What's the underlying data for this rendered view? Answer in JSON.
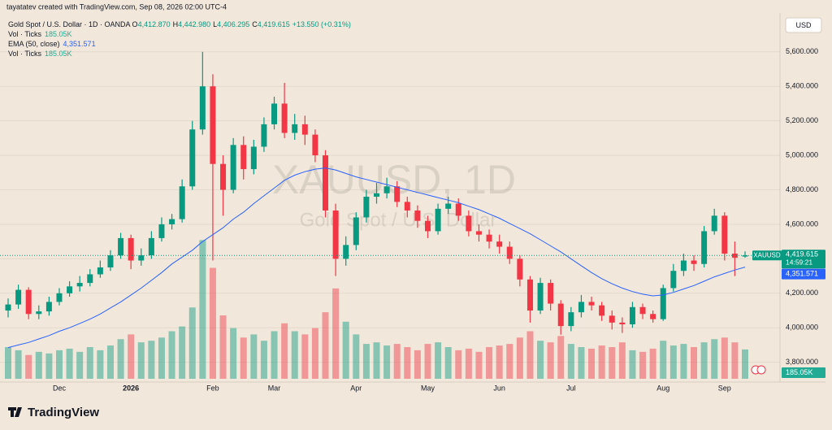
{
  "header": {
    "credit": "tayatatev created with TradingView.com, Sep 08, 2026 02:00 UTC-4"
  },
  "footer": {
    "brand": "TradingView"
  },
  "chart_data": {
    "type": "candlestick",
    "title": "Gold Spot / U.S. Dollar · 1D · OANDA",
    "watermark": "XAUUSD, 1D",
    "watermark_subtitle": "Gold Spot / U.S. Dollar",
    "symbol": "XAUUSD",
    "currency": "USD",
    "ohlc_legend": [
      {
        "key": "O",
        "label": "4,412.870"
      },
      {
        "key": "H",
        "label": "4,442.980"
      },
      {
        "key": "L",
        "label": "4,406.295"
      },
      {
        "key": "C",
        "label": "4,419.615"
      }
    ],
    "change_label": "+13.550 (+0.31%)",
    "categories": [
      null,
      null,
      null,
      null,
      null,
      "Dec",
      null,
      null,
      null,
      null,
      null,
      null,
      "2026",
      null,
      null,
      null,
      null,
      null,
      null,
      null,
      "Feb",
      null,
      null,
      null,
      null,
      null,
      "Mar",
      null,
      null,
      null,
      null,
      null,
      null,
      null,
      "Apr",
      null,
      null,
      null,
      null,
      null,
      null,
      "May",
      null,
      null,
      null,
      null,
      null,
      null,
      "Jun",
      null,
      null,
      null,
      null,
      null,
      null,
      "Jul",
      null,
      null,
      null,
      null,
      null,
      null,
      null,
      null,
      "Aug",
      null,
      null,
      null,
      null,
      null,
      "Sep",
      null,
      null
    ],
    "open": [
      4100,
      4135,
      4220,
      4080,
      4095,
      4150,
      4200,
      4240,
      4260,
      4310,
      4350,
      4420,
      4520,
      4390,
      4420,
      4520,
      4600,
      4630,
      4820,
      5150,
      5400,
      4950,
      4800,
      5060,
      4920,
      5050,
      5180,
      5300,
      5130,
      5180,
      5120,
      5000,
      4680,
      4400,
      4480,
      4640,
      4760,
      4780,
      4820,
      4730,
      4680,
      4620,
      4560,
      4690,
      4720,
      4650,
      4560,
      4540,
      4500,
      4470,
      4400,
      4280,
      4100,
      4260,
      4140,
      4010,
      4090,
      4150,
      4130,
      4070,
      4030,
      4020,
      4120,
      4080,
      4050,
      4230,
      4330,
      4390,
      4370,
      4560,
      4650,
      4430,
      4412.87
    ],
    "high": [
      4170,
      4250,
      4235,
      4130,
      4180,
      4230,
      4270,
      4300,
      4340,
      4390,
      4450,
      4550,
      4540,
      4460,
      4560,
      4640,
      4660,
      4860,
      5200,
      5600,
      5470,
      5000,
      5100,
      5110,
      5090,
      5220,
      5340,
      5420,
      5240,
      5230,
      5150,
      5030,
      4720,
      4530,
      4670,
      4800,
      4840,
      4870,
      4850,
      4760,
      4710,
      4650,
      4720,
      4760,
      4750,
      4680,
      4600,
      4570,
      4540,
      4500,
      4420,
      4300,
      4290,
      4280,
      4160,
      4120,
      4190,
      4180,
      4150,
      4100,
      4060,
      4150,
      4140,
      4100,
      4250,
      4370,
      4430,
      4420,
      4590,
      4690,
      4670,
      4500,
      4442.98
    ],
    "low": [
      4060,
      4110,
      4050,
      4050,
      4070,
      4130,
      4180,
      4210,
      4240,
      4290,
      4330,
      4400,
      4340,
      4360,
      4400,
      4500,
      4570,
      4610,
      4800,
      5120,
      4390,
      4650,
      4780,
      4860,
      4890,
      5020,
      5150,
      5100,
      5090,
      5060,
      4960,
      4640,
      4300,
      4360,
      4450,
      4610,
      4720,
      4750,
      4700,
      4640,
      4580,
      4520,
      4540,
      4660,
      4620,
      4530,
      4500,
      4460,
      4430,
      4370,
      4240,
      4030,
      4080,
      4100,
      3960,
      3980,
      4060,
      4100,
      4040,
      3990,
      3970,
      4000,
      4050,
      4030,
      4040,
      4210,
      4300,
      4330,
      4350,
      4540,
      4390,
      4300,
      4406.295
    ],
    "close": [
      4135,
      4220,
      4080,
      4095,
      4150,
      4200,
      4240,
      4260,
      4310,
      4350,
      4420,
      4520,
      4390,
      4420,
      4520,
      4600,
      4630,
      4820,
      5150,
      5400,
      4950,
      4800,
      5060,
      4920,
      5050,
      5180,
      5300,
      5130,
      5180,
      5120,
      5000,
      4680,
      4400,
      4480,
      4640,
      4760,
      4780,
      4820,
      4730,
      4680,
      4620,
      4560,
      4690,
      4720,
      4650,
      4560,
      4540,
      4500,
      4470,
      4400,
      4280,
      4100,
      4260,
      4140,
      4010,
      4090,
      4150,
      4130,
      4070,
      4030,
      4020,
      4120,
      4080,
      4050,
      4230,
      4330,
      4390,
      4370,
      4560,
      4650,
      4430,
      4406.065,
      4419.615
    ],
    "up_color": "#089981",
    "down_color": "#f23645",
    "ema": {
      "name": "EMA (50, close)",
      "color": "#2962ff",
      "last_label": "4,351.571",
      "values": [
        3885,
        3900,
        3915,
        3935,
        3955,
        3980,
        4000,
        4025,
        4050,
        4080,
        4115,
        4150,
        4190,
        4230,
        4275,
        4320,
        4370,
        4410,
        4450,
        4500,
        4540,
        4580,
        4630,
        4670,
        4720,
        4765,
        4810,
        4855,
        4885,
        4905,
        4920,
        4927,
        4915,
        4895,
        4875,
        4860,
        4845,
        4830,
        4815,
        4800,
        4785,
        4770,
        4755,
        4740,
        4725,
        4705,
        4685,
        4660,
        4635,
        4605,
        4575,
        4545,
        4510,
        4475,
        4440,
        4400,
        4360,
        4320,
        4285,
        4255,
        4230,
        4210,
        4195,
        4185,
        4190,
        4205,
        4225,
        4245,
        4270,
        4295,
        4315,
        4335,
        4351.571
      ]
    },
    "volume": {
      "name": "Vol · Ticks",
      "last_label": "185.05K",
      "values": [
        200,
        180,
        150,
        170,
        160,
        180,
        190,
        170,
        200,
        180,
        210,
        250,
        280,
        230,
        240,
        260,
        300,
        330,
        450,
        875,
        700,
        400,
        320,
        260,
        280,
        240,
        300,
        350,
        300,
        280,
        320,
        420,
        570,
        360,
        280,
        220,
        230,
        210,
        220,
        200,
        180,
        220,
        230,
        200,
        180,
        190,
        170,
        200,
        210,
        220,
        260,
        300,
        240,
        230,
        270,
        220,
        200,
        190,
        210,
        200,
        230,
        180,
        170,
        190,
        240,
        210,
        220,
        200,
        230,
        250,
        260,
        230,
        185.05
      ]
    },
    "last_price_label": "4,419.615",
    "countdown": "14:59:21",
    "ylim": [
      3690,
      5830
    ],
    "yticks": [
      {
        "value": 3800,
        "label": "3,800.000"
      },
      {
        "value": 4000,
        "label": "4,000.000"
      },
      {
        "value": 4200,
        "label": "4,200.000"
      },
      {
        "value": 4400,
        "label": "4,400.000"
      },
      {
        "value": 4600,
        "label": "4,600.000"
      },
      {
        "value": 4800,
        "label": "4,800.000"
      },
      {
        "value": 5000,
        "label": "5,000.000"
      },
      {
        "value": 5200,
        "label": "5,200.000"
      },
      {
        "value": 5400,
        "label": "5,400.000"
      },
      {
        "value": 5600,
        "label": "5,600.000"
      }
    ],
    "grid": true
  }
}
